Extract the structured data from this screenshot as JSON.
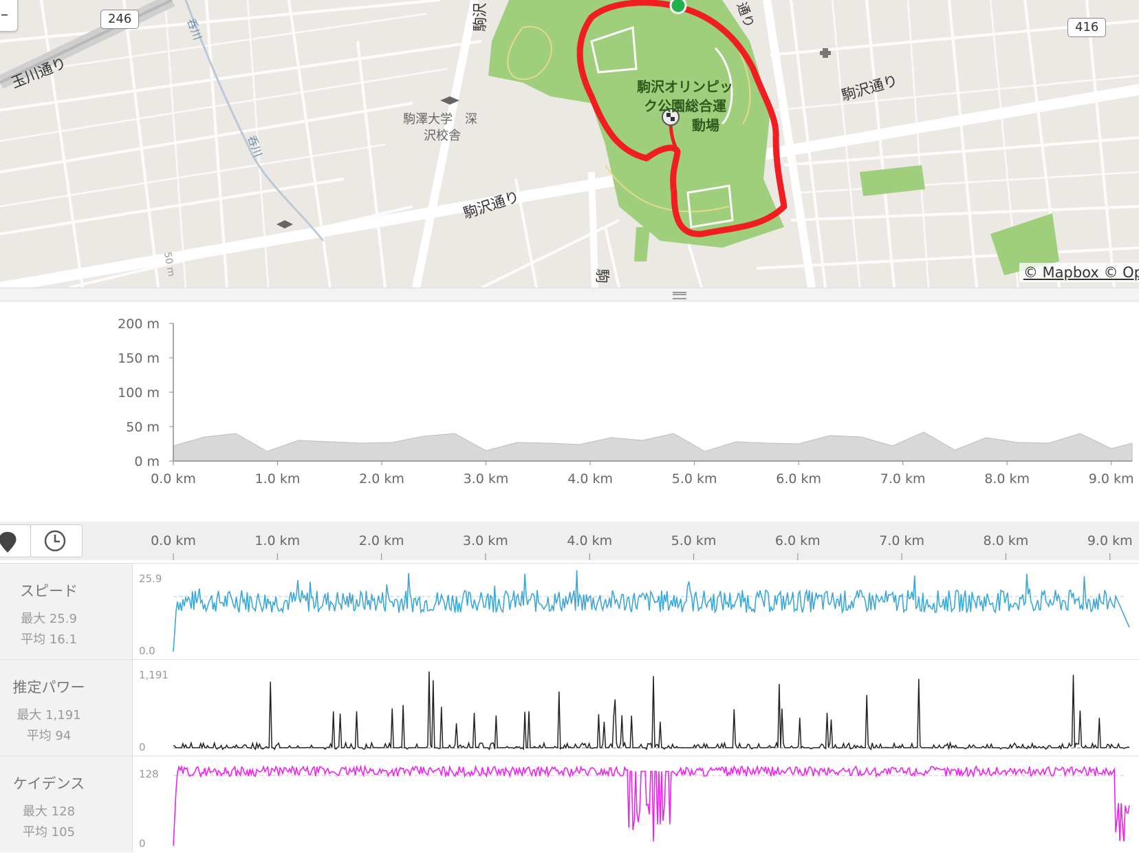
{
  "map": {
    "shields": [
      "246",
      "416"
    ],
    "labels": {
      "tamagawa": "玉川通り",
      "komazawa_a": "駒沢通り",
      "komazawa_b": "駒沢通り",
      "komazawa_c": "駒沢",
      "komazawa_d": "駒",
      "park_line1": "駒沢オリンピッ",
      "park_line2": "ク公園総合運",
      "park_line3": "動場",
      "univ_line1": "駒澤大学　深",
      "univ_line2": "沢校舎",
      "river_a": "呑川",
      "river_b": "呑川",
      "dori_top": "通り",
      "contour": "50 m"
    },
    "attribution": "© Mapbox © Op",
    "colors": {
      "route": "#f01e23",
      "park": "#9fcf7c",
      "start_marker": "#22b14c"
    }
  },
  "elevation": {
    "y_ticks": [
      "200 m",
      "150 m",
      "100 m",
      "50 m",
      "0 m"
    ],
    "x_ticks": [
      "0.0 km",
      "1.0 km",
      "2.0 km",
      "3.0 km",
      "4.0 km",
      "5.0 km",
      "6.0 km",
      "7.0 km",
      "8.0 km",
      "9.0 km"
    ]
  },
  "toolbar": {
    "icons": [
      "map-pin-icon",
      "clock-icon"
    ]
  },
  "distance_axis": [
    "0.0 km",
    "1.0 km",
    "2.0 km",
    "3.0 km",
    "4.0 km",
    "5.0 km",
    "6.0 km",
    "7.0 km",
    "8.0 km",
    "9.0 km"
  ],
  "panels": [
    {
      "name": "スピード",
      "max": "最大 25.9",
      "avg": "平均 16.1",
      "ymax": "25.9",
      "ymin": "0.0",
      "color": "#3aa7d8"
    },
    {
      "name": "推定パワー",
      "max": "最大 1,191",
      "avg": "平均 94",
      "ymax": "1,191",
      "ymin": "0",
      "color": "#222222"
    },
    {
      "name": "ケイデンス",
      "max": "最大 128",
      "avg": "平均 105",
      "ymax": "128",
      "ymin": "0",
      "color": "#ee22ee"
    }
  ],
  "chart_data": [
    {
      "type": "area",
      "ylabel": "",
      "xlabel": "",
      "ylim": [
        0,
        200
      ],
      "xlim": [
        0,
        9.2
      ],
      "x": [
        0,
        0.3,
        0.6,
        0.9,
        1.2,
        1.5,
        1.8,
        2.1,
        2.4,
        2.7,
        3.0,
        3.3,
        3.6,
        3.9,
        4.2,
        4.5,
        4.8,
        5.1,
        5.4,
        5.7,
        6.0,
        6.3,
        6.6,
        6.9,
        7.2,
        7.5,
        7.8,
        8.1,
        8.4,
        8.7,
        9.0,
        9.2
      ],
      "y": [
        22,
        35,
        40,
        14,
        30,
        28,
        26,
        27,
        36,
        40,
        15,
        27,
        26,
        24,
        34,
        30,
        40,
        14,
        28,
        26,
        25,
        37,
        35,
        22,
        42,
        16,
        34,
        27,
        26,
        40,
        18,
        26
      ]
    },
    {
      "type": "line",
      "name": "スピード",
      "ylim": [
        0,
        25.9
      ],
      "xlim": [
        0,
        9.2
      ],
      "grid": false
    },
    {
      "type": "line",
      "name": "推定パワー",
      "ylim": [
        0,
        1191
      ],
      "xlim": [
        0,
        9.2
      ],
      "grid": false
    },
    {
      "type": "line",
      "name": "ケイデンス",
      "ylim": [
        0,
        128
      ],
      "xlim": [
        0,
        9.2
      ],
      "grid": false
    }
  ]
}
